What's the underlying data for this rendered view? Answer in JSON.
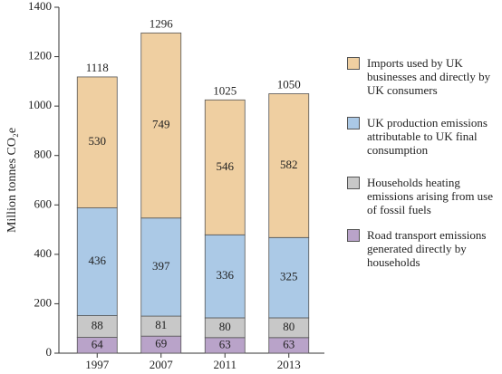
{
  "chart_data": {
    "type": "stacked_bar",
    "y_label": "Million tonnes CO₂e",
    "categories": [
      "1997",
      "2007",
      "2011",
      "2013"
    ],
    "series": [
      {
        "name": "Road transport emissions generated directly by households",
        "color": "#b9a3c9",
        "values": [
          64,
          69,
          63,
          63
        ]
      },
      {
        "name": "Households heating emissions arising from use of fossil fuels",
        "color": "#c8c8c8",
        "values": [
          88,
          81,
          80,
          80
        ]
      },
      {
        "name": "UK production emissions attributable to UK final consumption",
        "color": "#abc9e6",
        "values": [
          436,
          397,
          336,
          325
        ]
      },
      {
        "name": "Imports used by UK businesses and directly by UK consumers",
        "color": "#efcfa1",
        "values": [
          530,
          749,
          546,
          582
        ]
      }
    ],
    "totals": [
      1118,
      1296,
      1025,
      1050
    ],
    "ylim": [
      0,
      1400
    ],
    "yticks": [
      0,
      200,
      400,
      600,
      800,
      1000,
      1200,
      1400
    ],
    "grid": false
  }
}
